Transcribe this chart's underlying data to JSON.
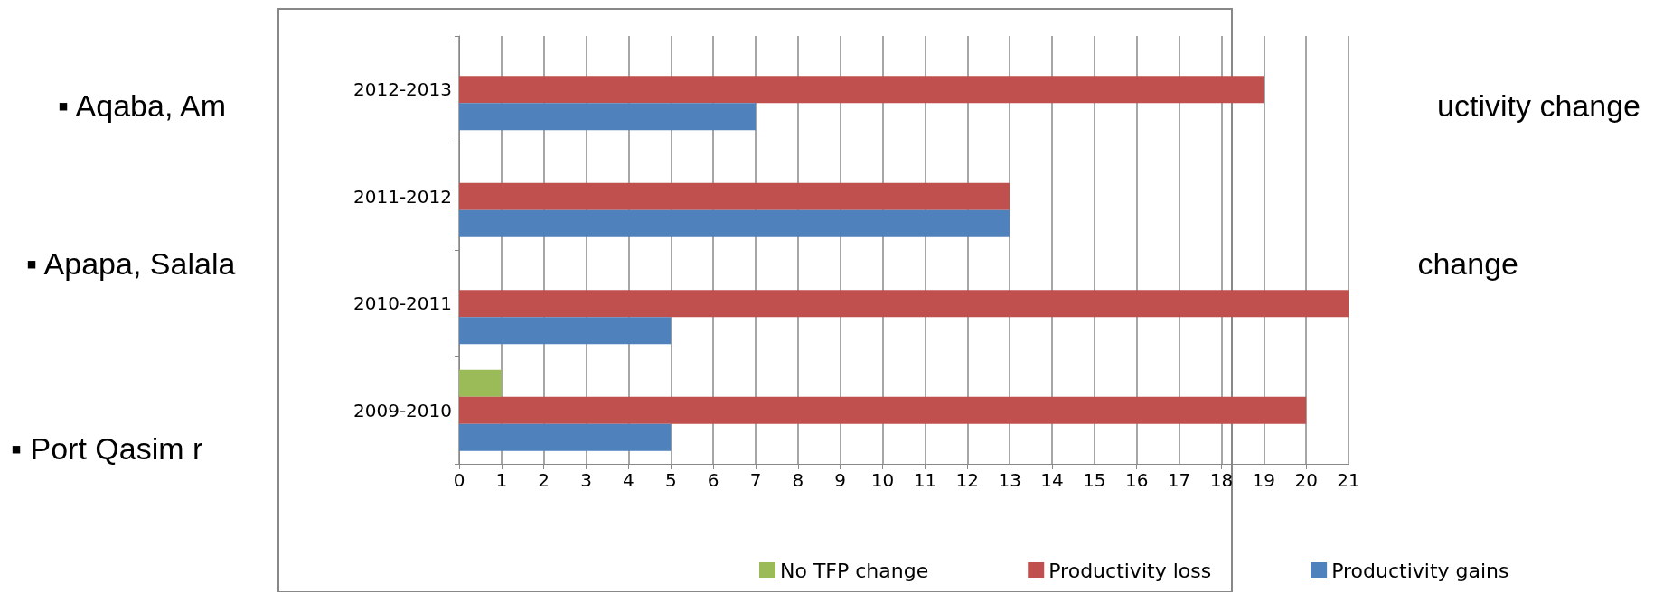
{
  "chart_data": {
    "type": "bar",
    "orientation": "horizontal",
    "categories": [
      "2012-2013",
      "2011-2012",
      "2010-2011",
      "2009-2010"
    ],
    "series": [
      {
        "name": "No TFP change",
        "color": "#9bbb59",
        "values": [
          null,
          null,
          null,
          1
        ]
      },
      {
        "name": "Productivity loss",
        "color": "#c0504d",
        "values": [
          19,
          13,
          21,
          20
        ]
      },
      {
        "name": "Productivity gains",
        "color": "#4f81bd",
        "values": [
          7,
          13,
          5,
          5
        ]
      }
    ],
    "xlim": [
      0,
      21
    ],
    "xticks": [
      0,
      1,
      2,
      3,
      4,
      5,
      6,
      7,
      8,
      9,
      10,
      11,
      12,
      13,
      14,
      15,
      16,
      17,
      18,
      19,
      20,
      21
    ],
    "grid": "x",
    "legend": "bottom",
    "annotations": [
      "▪ Aqaba, Am",
      "uctivity change",
      "▪ Apapa, Salala",
      "change",
      "▪ Port Qasim r"
    ]
  }
}
